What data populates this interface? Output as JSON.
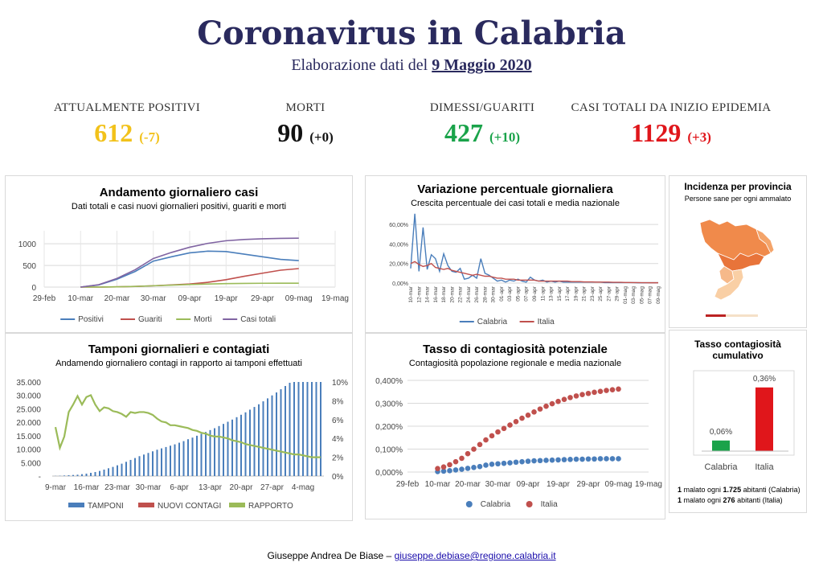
{
  "header": {
    "title": "Coronavirus in Calabria",
    "subtitle_prefix": "Elaborazione dati del",
    "date": "9 Maggio 2020"
  },
  "stats": [
    {
      "label": "ATTUALMENTE POSITIVI",
      "value": "612",
      "delta": "(-7)",
      "color": "#f2c21b"
    },
    {
      "label": "MORTI",
      "value": "90",
      "delta": "(+0)",
      "color": "#111111"
    },
    {
      "label": "DIMESSI/GUARITI",
      "value": "427",
      "delta": "(+10)",
      "color": "#1aa34a"
    },
    {
      "label": "CASI TOTALI DA INIZIO EPIDEMIA",
      "value": "1129",
      "delta": "(+3)",
      "color": "#e0161b"
    }
  ],
  "panels": {
    "p1": {
      "title": "Andamento giornaliero casi",
      "subtitle": "Dati totali e casi nuovi giornalieri positivi, guariti e morti"
    },
    "p2": {
      "title": "Variazione percentuale giornaliera",
      "subtitle": "Crescita percentuale dei casi totali e media nazionale"
    },
    "p3": {
      "title": "Incidenza per provincia",
      "subtitle": "Persone sane per ogni ammalato"
    },
    "p4": {
      "title": "Tamponi giornalieri e contagiati",
      "subtitle": "Andamendo giornaliero contagi in rapporto ai tamponi effettuati"
    },
    "p5": {
      "title": "Tasso di contagiosità potenziale",
      "subtitle": "Contagiosità popolazione regionale e media nazionale"
    },
    "p6": {
      "title": "Tasso contagiosità cumulativo",
      "note1_bold": "1",
      "note1_mid": " malato ogni ",
      "note1_num": "1.725",
      "note1_end": " abitanti (Calabria)",
      "note2_bold": "1",
      "note2_mid": " malato ogni ",
      "note2_num": "276",
      "note2_end": " abitanti (Italia)"
    }
  },
  "footer": {
    "author": "Giuseppe Andrea De Biase –",
    "email": "giuseppe.debiase@regione.calabria.it"
  },
  "chart_data": [
    {
      "id": "casi",
      "type": "line",
      "x_ticks": [
        "29-feb",
        "10-mar",
        "20-mar",
        "30-mar",
        "09-apr",
        "19-apr",
        "29-apr",
        "09-mag",
        "19-mag"
      ],
      "y_ticks": [
        "0",
        "500",
        "1000"
      ],
      "ylim": [
        0,
        1300
      ],
      "grid": true,
      "legend": "bottom",
      "x_days": [
        10,
        15,
        20,
        25,
        30,
        35,
        40,
        45,
        50,
        55,
        60,
        65,
        70
      ],
      "series": [
        {
          "name": "Positivi",
          "color": "#4a7ebb",
          "values": [
            0,
            50,
            180,
            360,
            600,
            700,
            790,
            830,
            820,
            760,
            700,
            640,
            612
          ]
        },
        {
          "name": "Guariti",
          "color": "#c0504d",
          "values": [
            0,
            0,
            5,
            15,
            30,
            50,
            70,
            110,
            170,
            250,
            320,
            390,
            427
          ]
        },
        {
          "name": "Morti",
          "color": "#9bbb59",
          "values": [
            0,
            1,
            5,
            15,
            30,
            45,
            60,
            70,
            80,
            85,
            88,
            90,
            90
          ]
        },
        {
          "name": "Casi totali",
          "color": "#8064a2",
          "values": [
            0,
            55,
            200,
            400,
            660,
            800,
            920,
            1010,
            1070,
            1100,
            1115,
            1125,
            1129
          ]
        }
      ]
    },
    {
      "id": "variazione",
      "type": "line",
      "x_ticks": [
        "10-mar",
        "12-mar",
        "14-mar",
        "16-mar",
        "18-mar",
        "20-mar",
        "22-mar",
        "24-mar",
        "26-mar",
        "28-mar",
        "30-mar",
        "01-apr",
        "03-apr",
        "05-apr",
        "07-apr",
        "09-apr",
        "11-apr",
        "13-apr",
        "15-apr",
        "17-apr",
        "19-apr",
        "21-apr",
        "23-apr",
        "25-apr",
        "27-apr",
        "29-apr",
        "01-mag",
        "03-mag",
        "05-mag",
        "07-mag",
        "09-mag"
      ],
      "y_ticks": [
        "0,00%",
        "20,00%",
        "40,00%",
        "60,00%"
      ],
      "ylim": [
        0,
        70
      ],
      "grid": true,
      "legend": "bottom",
      "series": [
        {
          "name": "Calabria",
          "color": "#4a7ebb",
          "values": [
            15,
            71,
            12,
            57,
            14,
            29,
            25,
            12,
            30,
            18,
            12,
            11,
            15,
            4,
            5,
            8,
            5,
            25,
            10,
            8,
            5,
            2,
            3,
            1,
            3,
            2,
            4,
            2,
            1,
            6,
            3,
            2,
            3,
            1,
            2,
            1,
            2,
            1,
            1,
            1,
            1,
            1,
            1,
            1,
            1,
            1,
            1,
            0.5,
            0.5,
            0.5,
            0.5,
            0.5,
            0.5,
            0.5,
            0.5,
            0.3,
            0.3,
            0.3,
            0.3,
            0.3,
            0.3
          ]
        },
        {
          "name": "Italia",
          "color": "#c0504d",
          "values": [
            20,
            22,
            19,
            17,
            18,
            20,
            16,
            15,
            14,
            15,
            13,
            12,
            11,
            10,
            9,
            8,
            9,
            8,
            7,
            7,
            6,
            5,
            5,
            4,
            4,
            4,
            3,
            3,
            3,
            3,
            3,
            2,
            2,
            2,
            2,
            2,
            2,
            2,
            2,
            1.5,
            1.5,
            1.5,
            1.2,
            1.2,
            1.2,
            1,
            1,
            1,
            1,
            0.8,
            0.8,
            0.8,
            0.6,
            0.6,
            0.5,
            0.5,
            0.4,
            0.4,
            0.3,
            0.3,
            0.3
          ]
        }
      ]
    },
    {
      "id": "tamponi",
      "type": "bar+line",
      "x_ticks": [
        "9-mar",
        "16-mar",
        "23-mar",
        "30-mar",
        "6-apr",
        "13-apr",
        "20-apr",
        "27-apr",
        "4-mag"
      ],
      "y_left_ticks": [
        "-",
        "5.000",
        "10.000",
        "15.000",
        "20.000",
        "25.000",
        "30.000",
        "35.000"
      ],
      "y_right_ticks": [
        "0%",
        "2%",
        "4%",
        "6%",
        "8%",
        "10%"
      ],
      "ylim_left": [
        0,
        35000
      ],
      "ylim_right": [
        0,
        10
      ],
      "legend": "bottom",
      "series": [
        {
          "name": "TAMPONI",
          "color": "#4a7ebb",
          "values": [
            50,
            100,
            200,
            300,
            400,
            500,
            700,
            900,
            1200,
            1500,
            1900,
            2400,
            2900,
            3400,
            4000,
            4600,
            5300,
            6000,
            6700,
            7400,
            8000,
            8600,
            9200,
            9800,
            10300,
            10800,
            11300,
            11800,
            12400,
            13000,
            13700,
            14300,
            15000,
            15700,
            16400,
            17100,
            17800,
            18600,
            19400,
            20200,
            21000,
            21900,
            22800,
            23700,
            24700,
            25700,
            26700,
            27800,
            28900,
            30000,
            31100,
            32300,
            33500,
            34700,
            35000,
            35000,
            35000,
            35000,
            35000,
            35000,
            35000
          ]
        },
        {
          "name": "NUOVI CONTAGI",
          "color": "#c0504d",
          "values": []
        },
        {
          "name": "RAPPORTO",
          "color": "#9bbb59",
          "values": [
            5.2,
            3.0,
            4.2,
            6.8,
            7.6,
            8.5,
            7.6,
            8.4,
            8.6,
            7.6,
            6.9,
            7.3,
            7.2,
            6.9,
            6.8,
            6.6,
            6.3,
            6.8,
            6.7,
            6.8,
            6.8,
            6.7,
            6.5,
            6.1,
            5.8,
            5.7,
            5.4,
            5.4,
            5.3,
            5.2,
            5.1,
            4.9,
            4.8,
            4.6,
            4.5,
            4.3,
            4.2,
            4.2,
            4.1,
            4.0,
            3.8,
            3.7,
            3.6,
            3.4,
            3.3,
            3.2,
            3.1,
            3.0,
            2.9,
            2.8,
            2.7,
            2.6,
            2.5,
            2.4,
            2.3,
            2.3,
            2.2,
            2.1,
            2.0,
            2.0,
            2.0
          ]
        }
      ]
    },
    {
      "id": "contagiosita",
      "type": "scatter",
      "x_ticks": [
        "29-feb",
        "10-mar",
        "20-mar",
        "30-mar",
        "09-apr",
        "19-apr",
        "29-apr",
        "09-mag",
        "19-mag"
      ],
      "y_ticks": [
        "0,000%",
        "0,100%",
        "0,200%",
        "0,300%",
        "0,400%"
      ],
      "ylim": [
        0,
        0.4
      ],
      "grid": true,
      "legend": "bottom",
      "x_days": [
        10,
        12,
        14,
        16,
        18,
        20,
        22,
        24,
        26,
        28,
        30,
        32,
        34,
        36,
        38,
        40,
        42,
        44,
        46,
        48,
        50,
        52,
        54,
        56,
        58,
        60,
        62,
        64,
        66,
        68,
        70
      ],
      "series": [
        {
          "name": "Calabria",
          "color": "#4a7ebb",
          "values": [
            0.002,
            0.004,
            0.006,
            0.009,
            0.012,
            0.016,
            0.02,
            0.024,
            0.03,
            0.034,
            0.036,
            0.038,
            0.04,
            0.043,
            0.045,
            0.047,
            0.049,
            0.05,
            0.051,
            0.052,
            0.053,
            0.054,
            0.055,
            0.056,
            0.056,
            0.057,
            0.057,
            0.058,
            0.058,
            0.058,
            0.058
          ]
        },
        {
          "name": "Italia",
          "color": "#c0504d",
          "values": [
            0.015,
            0.022,
            0.032,
            0.045,
            0.06,
            0.08,
            0.1,
            0.12,
            0.14,
            0.158,
            0.175,
            0.19,
            0.205,
            0.22,
            0.235,
            0.248,
            0.262,
            0.275,
            0.287,
            0.298,
            0.308,
            0.317,
            0.325,
            0.332,
            0.338,
            0.343,
            0.348,
            0.352,
            0.356,
            0.359,
            0.362
          ]
        }
      ]
    },
    {
      "id": "cumulativo",
      "type": "bar",
      "categories": [
        "Calabria",
        "Italia"
      ],
      "values": [
        0.06,
        0.36
      ],
      "value_labels": [
        "0,06%",
        "0,36%"
      ],
      "colors": [
        "#1aa34a",
        "#e0161b"
      ],
      "ylim": [
        0,
        0.4
      ]
    }
  ]
}
